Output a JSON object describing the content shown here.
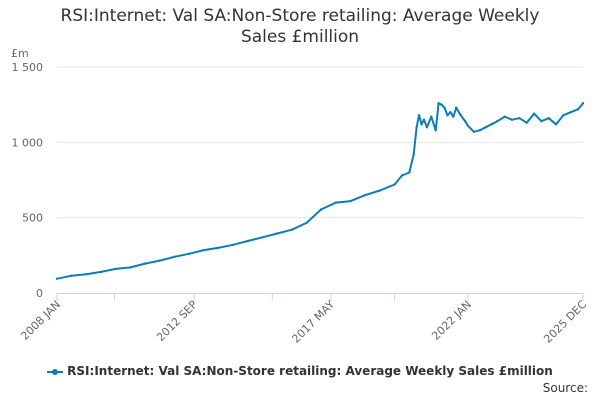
{
  "title_line1": "RSI:Internet: Val SA:Non-Store retailing: Average Weekly",
  "title_line2": "Sales £million",
  "chart_data": {
    "type": "line",
    "title": "RSI:Internet: Val SA:Non-Store retailing: Average Weekly Sales £million",
    "ylabel": "£m",
    "xlabel": "",
    "ylim": [
      0,
      1500
    ],
    "y_ticks": [
      0,
      500,
      1000,
      1500
    ],
    "y_tick_labels": [
      "0",
      "500",
      "1 000",
      "1 500"
    ],
    "x_tick_labels": [
      "2008 JAN",
      "2012 SEP",
      "2017 MAY",
      "2022 JAN",
      "2025 DEC"
    ],
    "x_tick_dates": [
      2008.0,
      2012.667,
      2017.333,
      2022.0,
      2025.917
    ],
    "x_minor_dates": [
      2008.0,
      2009.958,
      2012.667,
      2015.333,
      2017.333,
      2019.5,
      2022.0,
      2025.917
    ],
    "x_range": [
      2008.0,
      2025.917
    ],
    "series": [
      {
        "name": "RSI:Internet: Val SA:Non-Store retailing: Average Weekly Sales £million",
        "color": "#0a7fb7",
        "x": [
          2008.0,
          2008.5,
          2009.0,
          2009.5,
          2010.0,
          2010.5,
          2011.0,
          2011.5,
          2012.0,
          2012.5,
          2013.0,
          2013.5,
          2014.0,
          2014.5,
          2015.0,
          2015.5,
          2016.0,
          2016.5,
          2017.0,
          2017.5,
          2018.0,
          2018.5,
          2019.0,
          2019.5,
          2019.75,
          2020.0,
          2020.15,
          2020.25,
          2020.33,
          2020.42,
          2020.5,
          2020.6,
          2020.75,
          2020.9,
          2021.0,
          2021.1,
          2021.2,
          2021.3,
          2021.4,
          2021.5,
          2021.6,
          2021.75,
          2021.9,
          2022.0,
          2022.2,
          2022.4,
          2022.6,
          2022.8,
          2023.0,
          2023.25,
          2023.5,
          2023.75,
          2024.0,
          2024.25,
          2024.5,
          2024.75,
          2025.0,
          2025.25,
          2025.5,
          2025.75,
          2025.917
        ],
        "values": [
          95,
          115,
          125,
          140,
          160,
          170,
          195,
          215,
          240,
          260,
          285,
          300,
          320,
          345,
          370,
          395,
          420,
          465,
          555,
          600,
          610,
          650,
          680,
          720,
          780,
          800,
          920,
          1100,
          1180,
          1120,
          1150,
          1100,
          1170,
          1080,
          1260,
          1250,
          1230,
          1180,
          1200,
          1170,
          1230,
          1180,
          1140,
          1110,
          1070,
          1080,
          1100,
          1120,
          1140,
          1170,
          1150,
          1160,
          1130,
          1190,
          1140,
          1160,
          1120,
          1180,
          1200,
          1220,
          1260
        ]
      }
    ]
  },
  "legend_label": "RSI:Internet: Val SA:Non-Store retailing: Average Weekly Sales £million",
  "source_label": "Source:"
}
